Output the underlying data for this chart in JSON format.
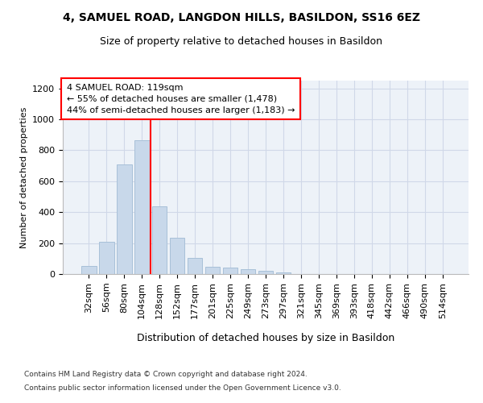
{
  "title1": "4, SAMUEL ROAD, LANGDON HILLS, BASILDON, SS16 6EZ",
  "title2": "Size of property relative to detached houses in Basildon",
  "xlabel": "Distribution of detached houses by size in Basildon",
  "ylabel": "Number of detached properties",
  "footer1": "Contains HM Land Registry data © Crown copyright and database right 2024.",
  "footer2": "Contains public sector information licensed under the Open Government Licence v3.0.",
  "categories": [
    "32sqm",
    "56sqm",
    "80sqm",
    "104sqm",
    "128sqm",
    "152sqm",
    "177sqm",
    "201sqm",
    "225sqm",
    "249sqm",
    "273sqm",
    "297sqm",
    "321sqm",
    "345sqm",
    "369sqm",
    "393sqm",
    "418sqm",
    "442sqm",
    "466sqm",
    "490sqm",
    "514sqm"
  ],
  "values": [
    50,
    210,
    710,
    865,
    440,
    235,
    105,
    47,
    40,
    30,
    22,
    10,
    0,
    0,
    0,
    0,
    0,
    0,
    0,
    0,
    0
  ],
  "bar_color": "#c8d8ea",
  "bar_edge_color": "#a8c0d8",
  "red_line_x": 3.5,
  "annotation_line1": "4 SAMUEL ROAD: 119sqm",
  "annotation_line2": "← 55% of detached houses are smaller (1,478)",
  "annotation_line3": "44% of semi-detached houses are larger (1,183) →",
  "ylim_max": 1250,
  "yticks": [
    0,
    200,
    400,
    600,
    800,
    1000,
    1200
  ],
  "grid_color": "#d0d8e8",
  "bg_color": "#edf2f8",
  "title1_fontsize": 10,
  "title2_fontsize": 9,
  "xlabel_fontsize": 9,
  "ylabel_fontsize": 8,
  "tick_fontsize": 8,
  "annotation_fontsize": 8,
  "footer_fontsize": 6.5
}
